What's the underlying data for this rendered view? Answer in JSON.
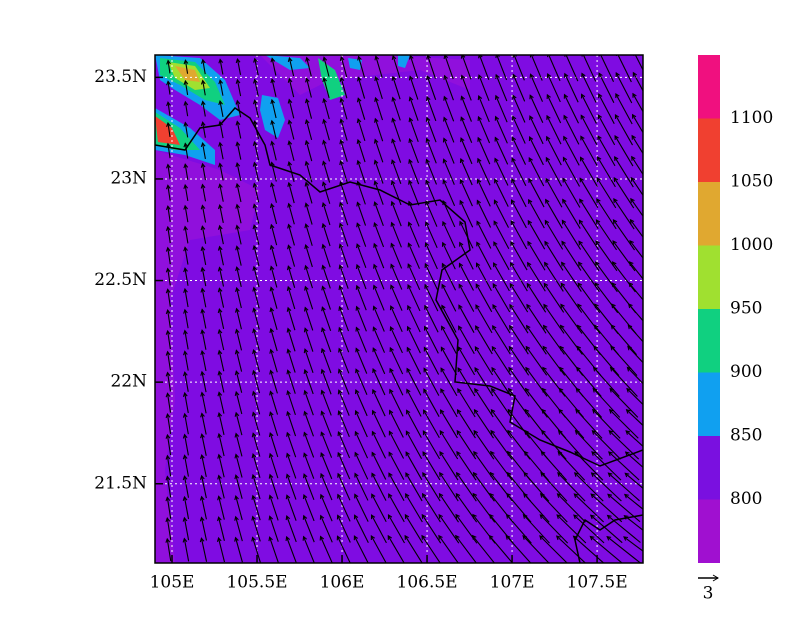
{
  "chart_data": {
    "type": "vector-contour-map",
    "xlim": [
      104.9,
      107.77
    ],
    "ylim": [
      21.11,
      23.61
    ],
    "xticks": [
      {
        "value": 105,
        "label": "105E"
      },
      {
        "value": 105.5,
        "label": "105.5E"
      },
      {
        "value": 106,
        "label": "106E"
      },
      {
        "value": 106.5,
        "label": "106.5E"
      },
      {
        "value": 107,
        "label": "107E"
      },
      {
        "value": 107.5,
        "label": "107.5E"
      }
    ],
    "yticks": [
      {
        "value": 21.5,
        "label": "21.5N"
      },
      {
        "value": 22,
        "label": "22N"
      },
      {
        "value": 22.5,
        "label": "22.5N"
      },
      {
        "value": 23,
        "label": "23N"
      },
      {
        "value": 23.5,
        "label": "23.5N"
      }
    ],
    "grid": true,
    "levels": [
      800,
      850,
      900,
      950,
      1000,
      1050,
      1100
    ],
    "colors": [
      "#a010d0",
      "#7a10e0",
      "#10a0f0",
      "#10d080",
      "#a0e030",
      "#e0a830",
      "#f04030",
      "#f0107f"
    ],
    "reference_vector_label": "3"
  }
}
